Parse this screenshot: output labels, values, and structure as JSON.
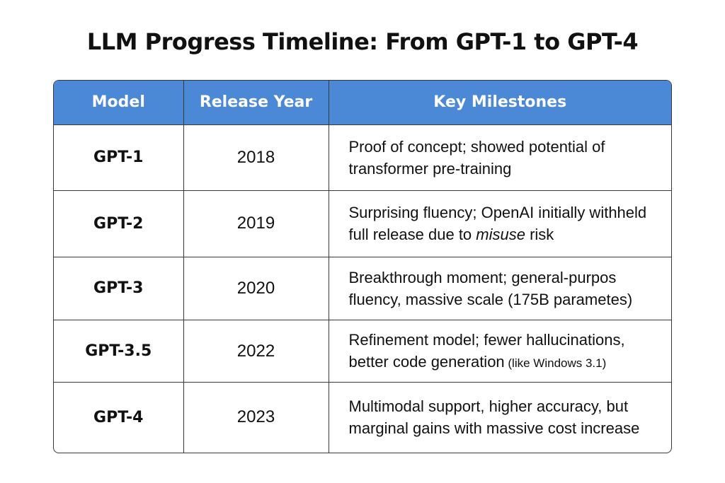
{
  "title": "LLM Progress Timeline: From GPT-1 to GPT-4",
  "table": {
    "headers": {
      "model": "Model",
      "year": "Release Year",
      "milestones": "Key Milestones"
    },
    "header_color": "#4b88d6",
    "rows": [
      {
        "model": "GPT-1",
        "year": "2018",
        "milestones": "Proof of concept; showed potential of transformer pre-training"
      },
      {
        "model": "GPT-2",
        "year": "2019",
        "milestones": "Surprising fluency; OpenAI initially withheld full release due to ",
        "milestones_emph": "misuse",
        "milestones_tail": " risk"
      },
      {
        "model": "GPT-3",
        "year": "2020",
        "milestones": "Breakthrough moment; general-purpos fluency, massive scale (175B parametes)"
      },
      {
        "model": "GPT-3.5",
        "year": "2022",
        "milestones": "Refinement model; fewer hallucinations, better code generation",
        "milestones_small": " (like Windows 3.1)"
      },
      {
        "model": "GPT-4",
        "year": "2023",
        "milestones": "Multimodal support, higher accuracy, but marginal gains with massive cost increase"
      }
    ]
  }
}
